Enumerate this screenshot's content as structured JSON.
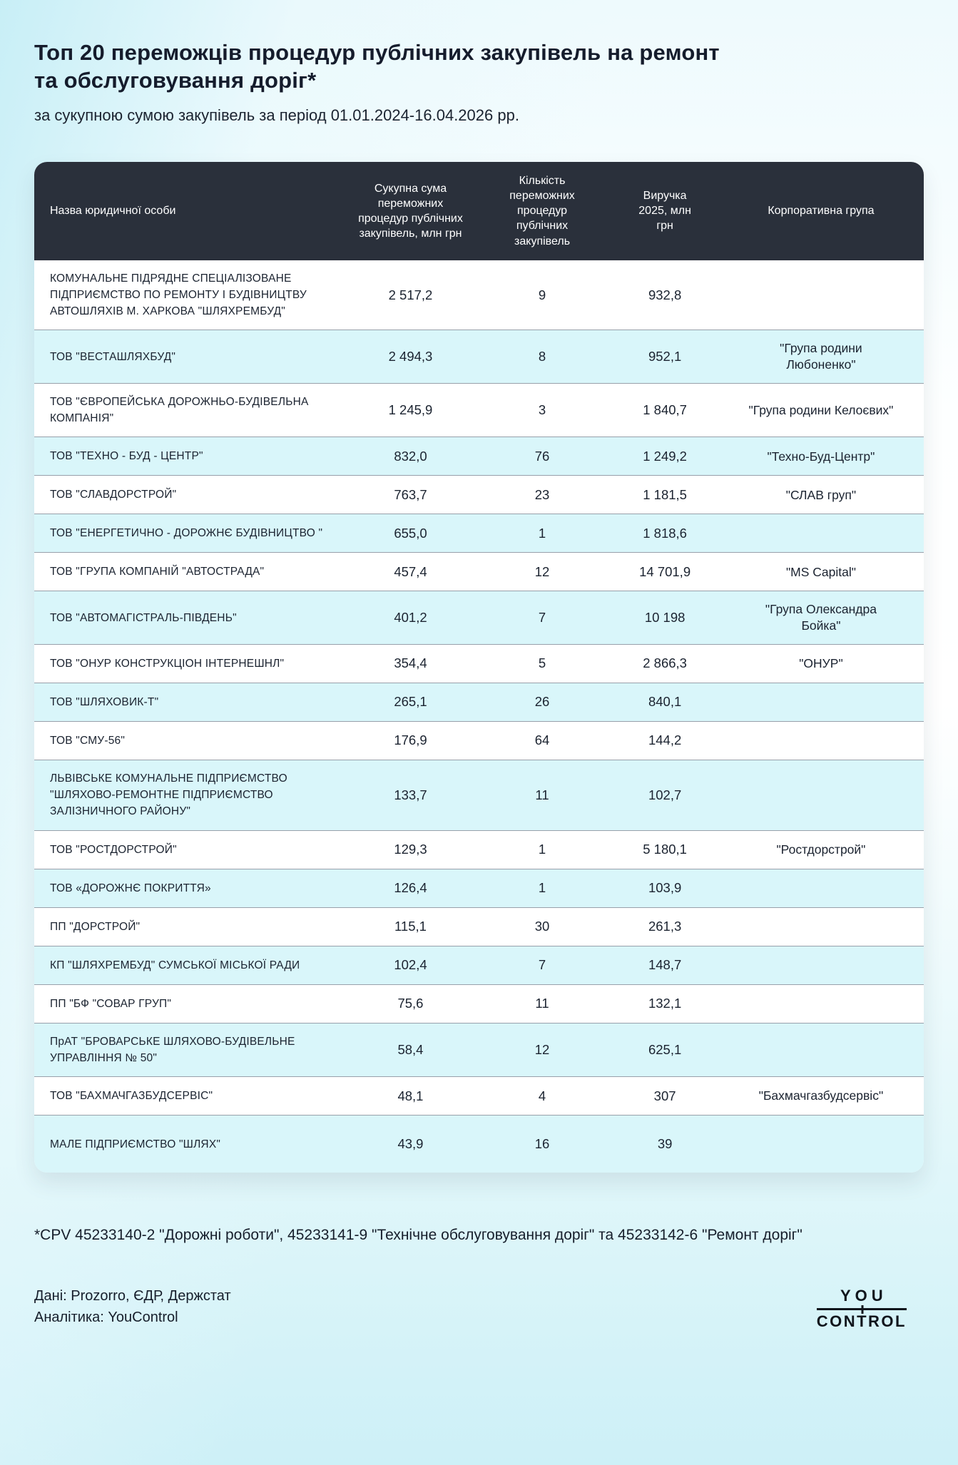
{
  "header": {
    "title": "Топ 20 переможців процедур публічних закупівель на ремонт та обслуговування доріг*",
    "subtitle": "за сукупною сумою закупівель за період 01.01.2024-16.04.2026 рр."
  },
  "chart_data": {
    "type": "table",
    "title": "Топ 20 переможців процедур публічних закупівель на ремонт та обслуговування доріг",
    "columns": [
      "Назва юридичної особи",
      "Сукупна сума переможних процедур публічних закупівель, млн грн",
      "Кількість переможних процедур публічних закупівель",
      "Виручка 2025, млн грн",
      "Корпоративна група"
    ],
    "rows": [
      {
        "name": "КОМУНАЛЬНЕ ПІДРЯДНЕ СПЕЦІАЛІЗОВАНЕ ПІДПРИЄМСТВО ПО РЕМОНТУ І БУДІВНИЦТВУ АВТОШЛЯХІВ М. ХАРКОВА \"ШЛЯХРЕМБУД\"",
        "total_sum": "2 517,2",
        "procedures": "9",
        "revenue": "932,8",
        "group": ""
      },
      {
        "name": "ТОВ \"ВЕСТАШЛЯХБУД\"",
        "total_sum": "2 494,3",
        "procedures": "8",
        "revenue": "952,1",
        "group": "\"Група родини Любоненко\""
      },
      {
        "name": "ТОВ \"ЄВРОПЕЙСЬКА ДОРОЖНЬО-БУДІВЕЛЬНА КОМПАНІЯ\"",
        "total_sum": "1 245,9",
        "procedures": "3",
        "revenue": "1 840,7",
        "group": "\"Група родини Келоєвих\""
      },
      {
        "name": "ТОВ \"ТЕХНО - БУД - ЦЕНТР\"",
        "total_sum": "832,0",
        "procedures": "76",
        "revenue": "1 249,2",
        "group": "\"Техно-Буд-Центр\""
      },
      {
        "name": "ТОВ \"СЛАВДОРСТРОЙ\"",
        "total_sum": "763,7",
        "procedures": "23",
        "revenue": "1 181,5",
        "group": "\"СЛАВ груп\""
      },
      {
        "name": "ТОВ \"ЕНЕРГЕТИЧНО - ДОРОЖНЄ БУДІВНИЦТВО \"",
        "total_sum": "655,0",
        "procedures": "1",
        "revenue": "1 818,6",
        "group": ""
      },
      {
        "name": "ТОВ \"ГРУПА КОМПАНІЙ \"АВТОСТРАДА\"",
        "total_sum": "457,4",
        "procedures": "12",
        "revenue": "14 701,9",
        "group": "\"MS Capital\""
      },
      {
        "name": "ТОВ \"АВТОМАГІСТРАЛЬ-ПІВДЕНЬ\"",
        "total_sum": "401,2",
        "procedures": "7",
        "revenue": "10 198",
        "group": "\"Група Олександра Бойка\""
      },
      {
        "name": "ТОВ \"ОНУР КОНСТРУКЦІОН ІНТЕРНЕШНЛ\"",
        "total_sum": "354,4",
        "procedures": "5",
        "revenue": "2 866,3",
        "group": "\"ОНУР\""
      },
      {
        "name": "ТОВ \"ШЛЯХОВИК-Т\"",
        "total_sum": "265,1",
        "procedures": "26",
        "revenue": "840,1",
        "group": ""
      },
      {
        "name": "ТОВ \"СМУ-56\"",
        "total_sum": "176,9",
        "procedures": "64",
        "revenue": "144,2",
        "group": ""
      },
      {
        "name": "ЛЬВІВСЬКЕ КОМУНАЛЬНЕ ПІДПРИЄМСТВО \"ШЛЯХОВО-РЕМОНТНЕ ПІДПРИЄМСТВО ЗАЛІЗНИЧНОГО РАЙОНУ\"",
        "total_sum": "133,7",
        "procedures": "11",
        "revenue": "102,7",
        "group": ""
      },
      {
        "name": "ТОВ \"РОСТДОРСТРОЙ\"",
        "total_sum": "129,3",
        "procedures": "1",
        "revenue": "5 180,1",
        "group": "\"Ростдорстрой\""
      },
      {
        "name": "ТОВ «ДОРОЖНЄ ПОКРИТТЯ»",
        "total_sum": "126,4",
        "procedures": "1",
        "revenue": "103,9",
        "group": ""
      },
      {
        "name": "ПП \"ДОРСТРОЙ\"",
        "total_sum": "115,1",
        "procedures": "30",
        "revenue": "261,3",
        "group": ""
      },
      {
        "name": "КП \"ШЛЯХРЕМБУД\" СУМСЬКОЇ МІСЬКОЇ РАДИ",
        "total_sum": "102,4",
        "procedures": "7",
        "revenue": "148,7",
        "group": ""
      },
      {
        "name": "ПП \"БФ \"СОВАР ГРУП\"",
        "total_sum": "75,6",
        "procedures": "11",
        "revenue": "132,1",
        "group": ""
      },
      {
        "name": "ПрАТ \"БРОВАРСЬКЕ ШЛЯХОВО-БУДІВЕЛЬНЕ УПРАВЛІННЯ № 50\"",
        "total_sum": "58,4",
        "procedures": "12",
        "revenue": "625,1",
        "group": ""
      },
      {
        "name": "ТОВ \"БАХМАЧГАЗБУДСЕРВІС\"",
        "total_sum": "48,1",
        "procedures": "4",
        "revenue": "307",
        "group": "\"Бахмачгазбудсервіс\""
      },
      {
        "name": "МАЛЕ ПІДПРИЄМСТВО \"ШЛЯХ\"",
        "total_sum": "43,9",
        "procedures": "16",
        "revenue": "39",
        "group": ""
      }
    ]
  },
  "footer": {
    "footnote": "*CPV 45233140-2 \"Дорожні роботи\", 45233141-9 \"Технічне обслуговування доріг\" та 45233142-6 \"Ремонт доріг\"",
    "data_source": "Дані: Prozorro, ЄДР, Держстат",
    "analytics": "Аналітика: YouControl",
    "logo": {
      "line1": "YOU",
      "line2_part1": "CON",
      "line2_t": "T",
      "line2_part2": "ROL"
    }
  },
  "colors": {
    "header_bg": "#2a303b",
    "header_text": "#ffffff",
    "row_alt_bg": "#d9f6fa",
    "row_divider": "#98a0aa",
    "text": "#1b2330",
    "background_accent": "#c8eef6"
  }
}
